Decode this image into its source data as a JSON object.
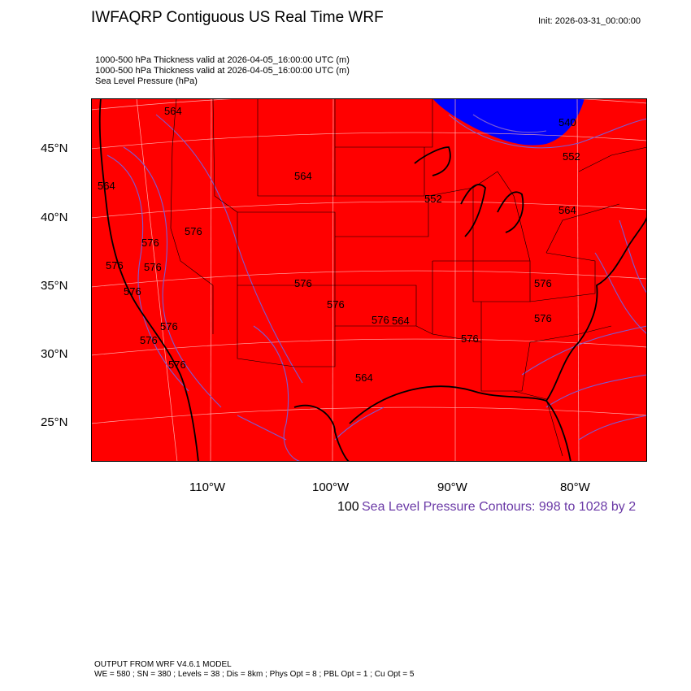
{
  "header": {
    "title": "IWFAQRP Contiguous US Real Time WRF",
    "init": "Init: 2026-03-31_00:00:00"
  },
  "subtitles": [
    "1000-500 hPa Thickness valid at 2026-04-05_16:00:00 UTC   (m)",
    "1000-500 hPa Thickness valid at 2026-04-05_16:00:00 UTC   (m)",
    "Sea Level Pressure   (hPa)"
  ],
  "map": {
    "fill_color": "#ff0000",
    "low_thickness_color": "#0000ff",
    "contour_color": "#7a5bd6",
    "lat_labels": [
      "45°N",
      "40°N",
      "35°N",
      "30°N",
      "25°N"
    ],
    "lon_labels": [
      "110°W",
      "100°W",
      "90°W",
      "80°W"
    ],
    "contour_labels": [
      "564",
      "564",
      "564",
      "576",
      "576",
      "576",
      "576",
      "576",
      "576",
      "576",
      "576",
      "576",
      "576",
      "576",
      "564",
      "552",
      "540",
      "552",
      "564",
      "576",
      "576",
      "564",
      "576"
    ]
  },
  "legend": {
    "prefix": "100",
    "contour_info": "Sea Level Pressure Contours: 998 to 1028 by 2"
  },
  "footer": {
    "line1": "OUTPUT FROM WRF V4.6.1 MODEL",
    "line2": "WE = 580 ; SN = 380 ; Levels = 38 ; Dis = 8km ; Phys Opt = 8 ; PBL Opt = 1 ; Cu Opt = 5"
  }
}
